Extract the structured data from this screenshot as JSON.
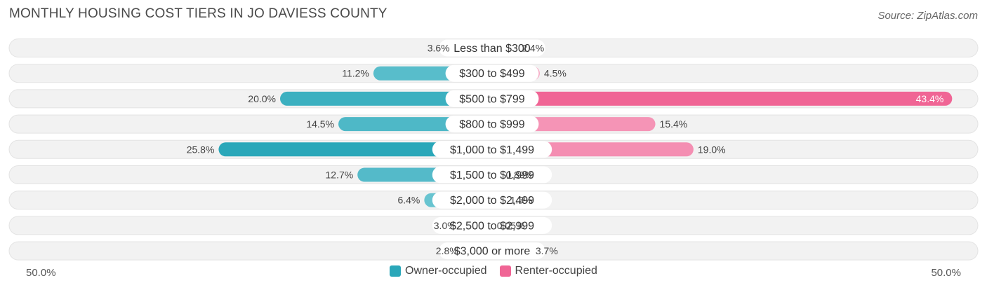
{
  "title": "MONTHLY HOUSING COST TIERS IN JO DAVIESS COUNTY",
  "source": "Source: ZipAtlas.com",
  "colors": {
    "owner": "#2aa7b9",
    "owner_light": "#7ccdd8",
    "renter": "#f06595",
    "renter_light": "#f7aec8",
    "row_bg": "#f2f2f2"
  },
  "chart_data": {
    "type": "bar",
    "orientation": "horizontal-diverging",
    "categories": [
      "Less than $300",
      "$300 to $499",
      "$500 to $799",
      "$800 to $999",
      "$1,000 to $1,499",
      "$1,500 to $1,999",
      "$2,000 to $2,499",
      "$2,500 to $2,999",
      "$3,000 or more"
    ],
    "series": [
      {
        "name": "Owner-occupied",
        "values": [
          3.6,
          11.2,
          20.0,
          14.5,
          25.8,
          12.7,
          6.4,
          3.0,
          2.8
        ],
        "labels": [
          "3.6%",
          "11.2%",
          "20.0%",
          "14.5%",
          "25.8%",
          "12.7%",
          "6.4%",
          "3.0%",
          "2.8%"
        ]
      },
      {
        "name": "Renter-occupied",
        "values": [
          2.4,
          4.5,
          43.4,
          15.4,
          19.0,
          0.89,
          1.3,
          0.05,
          3.7
        ],
        "labels": [
          "2.4%",
          "4.5%",
          "43.4%",
          "15.4%",
          "19.0%",
          "0.89%",
          "1.3%",
          "0.05%",
          "3.7%"
        ]
      }
    ],
    "xlim": [
      -50,
      50
    ],
    "axis_left_label": "50.0%",
    "axis_right_label": "50.0%",
    "legend_position": "bottom-center"
  }
}
